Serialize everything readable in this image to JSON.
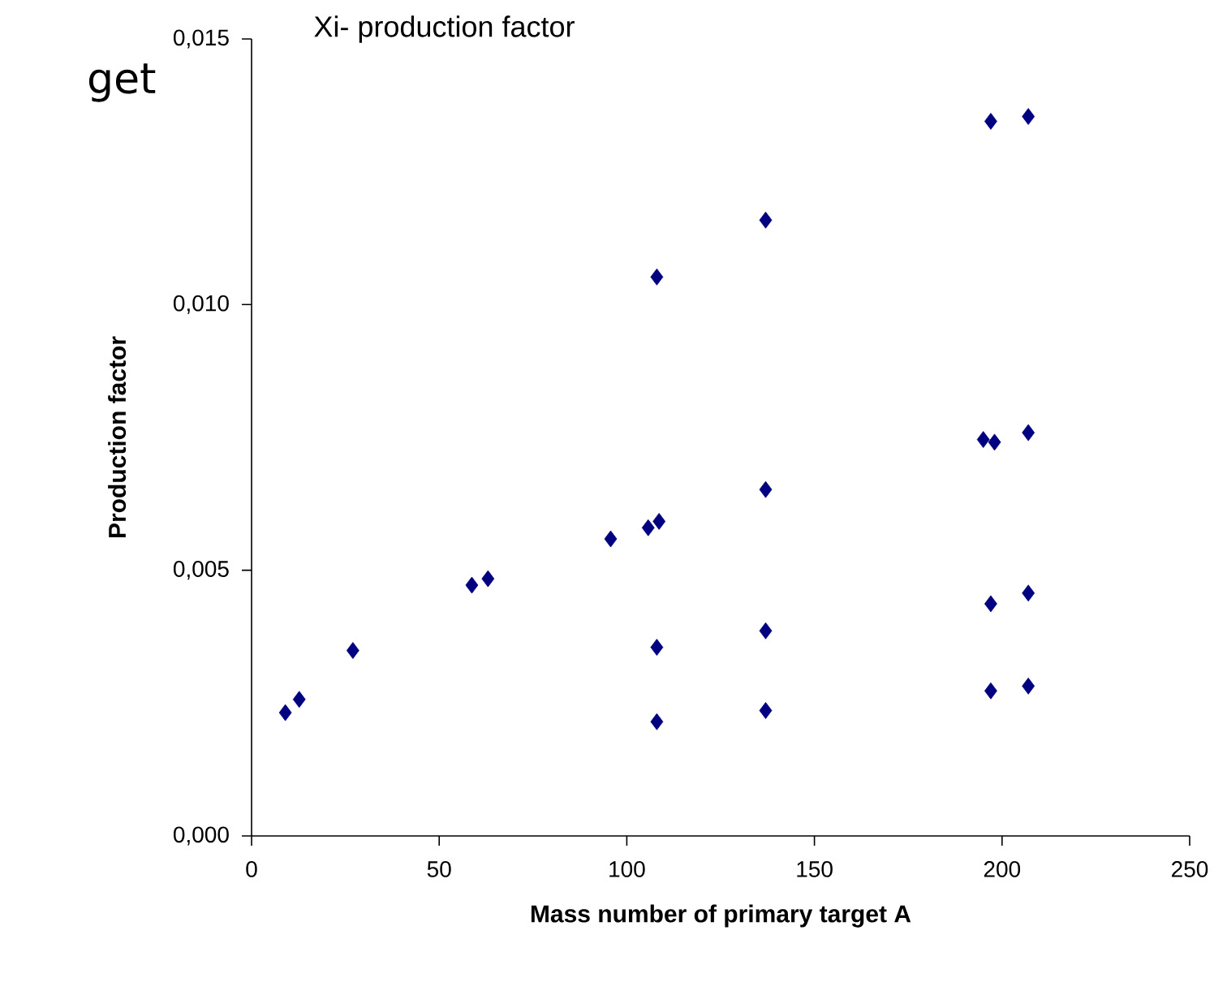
{
  "chart_data": {
    "type": "scatter",
    "title": "Xi- production factor",
    "xlabel": "Mass number of primary target A",
    "ylabel": "Production factor",
    "annotations": [
      "get"
    ],
    "x": [
      9,
      12.7,
      27,
      58.7,
      63,
      95.7,
      105.7,
      108.6,
      108,
      108,
      108,
      137,
      137,
      137,
      137,
      197,
      207,
      195,
      198,
      207,
      197,
      207,
      197,
      207
    ],
    "values": [
      0.00232,
      0.00257,
      0.00349,
      0.00472,
      0.00484,
      0.00559,
      0.0058,
      0.00592,
      0.01052,
      0.00355,
      0.00215,
      0.01159,
      0.00652,
      0.00386,
      0.00236,
      0.01345,
      0.01354,
      0.00746,
      0.00741,
      0.00759,
      0.00437,
      0.00457,
      0.00273,
      0.00282
    ],
    "color": "#000080",
    "marker": "diamond",
    "grid": false,
    "xlim": [
      0,
      250
    ],
    "xticks": [
      0,
      50,
      100,
      150,
      200,
      250
    ],
    "ylim": [
      0,
      0.015
    ],
    "yticks": [
      {
        "value": 0,
        "label": "0,000"
      },
      {
        "value": 0.005,
        "label": "0,005"
      },
      {
        "value": 0.01,
        "label": "0,010"
      },
      {
        "value": 0.015,
        "label": "0,015"
      }
    ]
  }
}
